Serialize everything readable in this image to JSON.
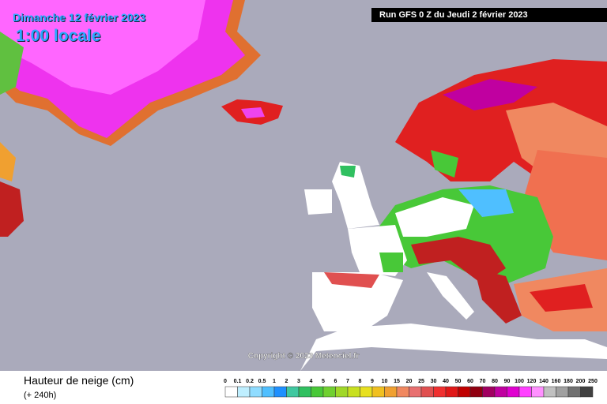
{
  "header": {
    "date": "Dimanche 12 février 2023",
    "time": "1:00 locale",
    "run": "Run GFS 0 Z du Jeudi 2 février 2023"
  },
  "map": {
    "copyright": "Copyright © 2023 Meteociel.fr"
  },
  "legend": {
    "title": "Hauteur de neige (cm)",
    "subtitle": "(+ 240h)",
    "labels": [
      0,
      0.1,
      0.2,
      0.5,
      1,
      2,
      3,
      4,
      5,
      6,
      7,
      8,
      9,
      10,
      15,
      20,
      25,
      30,
      40,
      50,
      60,
      70,
      80,
      90,
      100,
      120,
      140,
      160,
      180,
      200,
      250
    ],
    "colors": [
      "#ffffff",
      "#bfefff",
      "#8fdcff",
      "#4fbfff",
      "#1e90ff",
      "#40c8a0",
      "#30c060",
      "#48c838",
      "#70d030",
      "#a0d828",
      "#c8e020",
      "#e8e020",
      "#f0c020",
      "#f0a030",
      "#f08860",
      "#e87070",
      "#e05050",
      "#f03030",
      "#e01818",
      "#c00000",
      "#900010",
      "#a00060",
      "#c000a0",
      "#e000d0",
      "#ff40ff",
      "#ff90ff",
      "#c0c0c0",
      "#a0a0a0",
      "#707070",
      "#404040"
    ]
  }
}
